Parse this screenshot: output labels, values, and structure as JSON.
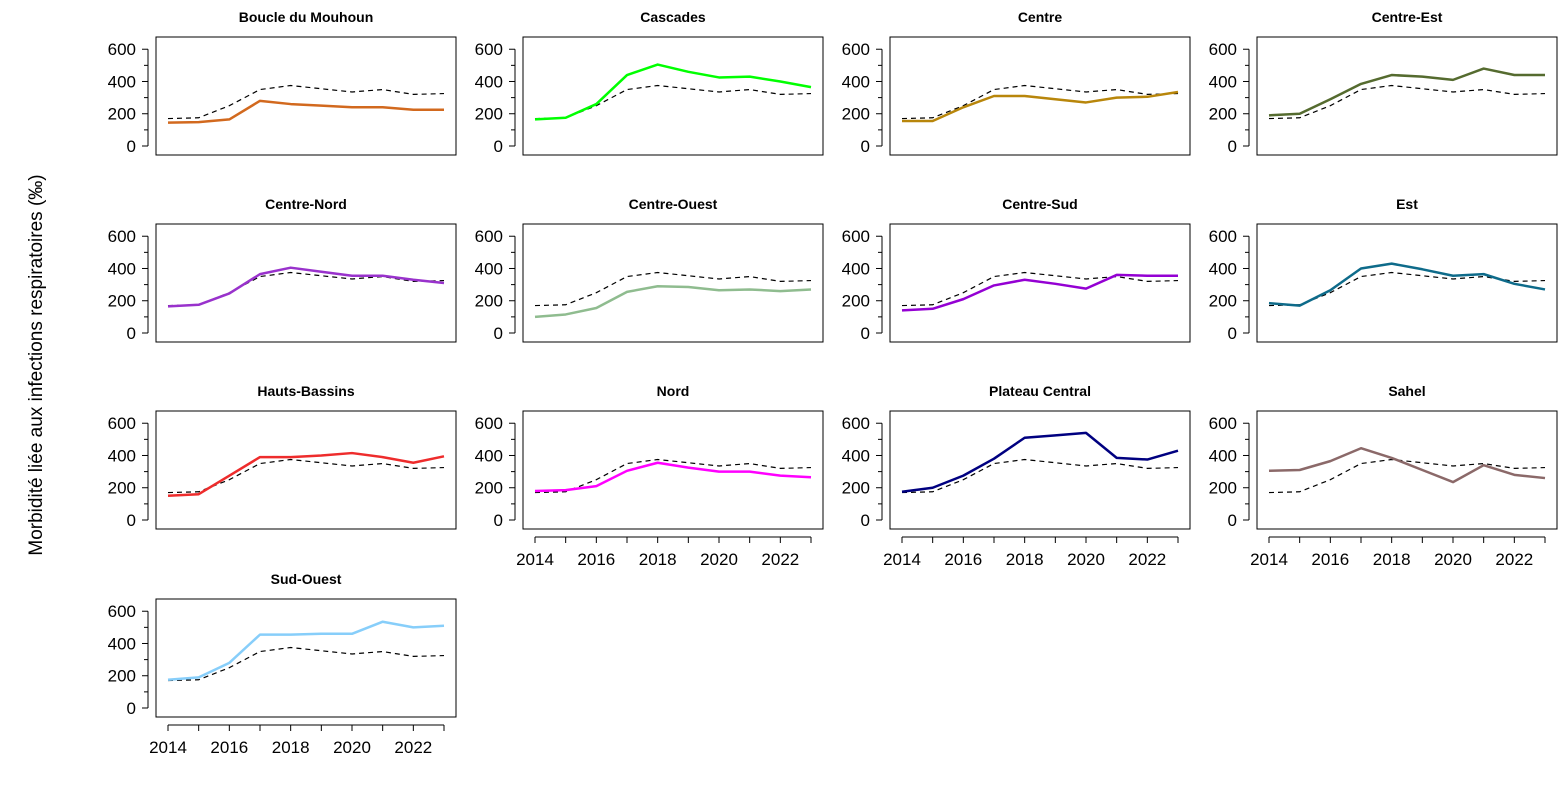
{
  "chart_data": {
    "type": "line",
    "ylabel": "Morbidité liée aux infections respiratoires (‰)",
    "x": [
      2014,
      2015,
      2016,
      2017,
      2018,
      2019,
      2020,
      2021,
      2022,
      2023
    ],
    "x_ticks": [
      2014,
      2016,
      2018,
      2020,
      2022
    ],
    "y_ticks": [
      0,
      200,
      400,
      600
    ],
    "ylim": [
      0,
      620
    ],
    "grid": false,
    "reference": [
      170,
      175,
      250,
      350,
      375,
      355,
      335,
      350,
      320,
      325
    ],
    "panels": [
      {
        "title": "Boucle du Mouhoun",
        "color": "#D2691E",
        "values": [
          145,
          148,
          165,
          280,
          260,
          250,
          240,
          240,
          225,
          225
        ]
      },
      {
        "title": "Cascades",
        "color": "#00FF00",
        "values": [
          165,
          175,
          260,
          440,
          505,
          460,
          425,
          430,
          400,
          365
        ]
      },
      {
        "title": "Centre",
        "color": "#B8860B",
        "values": [
          155,
          155,
          240,
          310,
          310,
          290,
          270,
          300,
          305,
          335
        ]
      },
      {
        "title": "Centre-Est",
        "color": "#556B2F",
        "values": [
          190,
          200,
          290,
          385,
          440,
          430,
          410,
          480,
          440,
          440
        ]
      },
      {
        "title": "Centre-Nord",
        "color": "#9932CC",
        "values": [
          165,
          175,
          245,
          365,
          405,
          380,
          355,
          355,
          330,
          310
        ]
      },
      {
        "title": "Centre-Ouest",
        "color": "#8FBC8F",
        "values": [
          100,
          115,
          155,
          255,
          290,
          285,
          265,
          270,
          260,
          270
        ]
      },
      {
        "title": "Centre-Sud",
        "color": "#9400D3",
        "values": [
          140,
          150,
          210,
          295,
          330,
          305,
          275,
          360,
          355,
          355
        ]
      },
      {
        "title": "Est",
        "color": "#0E6B8A",
        "values": [
          185,
          170,
          265,
          400,
          430,
          395,
          355,
          365,
          305,
          270
        ]
      },
      {
        "title": "Hauts-Bassins",
        "color": "#EE2C2C",
        "values": [
          150,
          160,
          275,
          390,
          390,
          400,
          415,
          390,
          355,
          395
        ]
      },
      {
        "title": "Nord",
        "color": "#FF00FF",
        "values": [
          180,
          185,
          210,
          305,
          355,
          325,
          300,
          300,
          275,
          265
        ]
      },
      {
        "title": "Plateau Central",
        "color": "#000080",
        "values": [
          175,
          200,
          275,
          380,
          510,
          525,
          540,
          385,
          375,
          430
        ]
      },
      {
        "title": "Sahel",
        "color": "#8B6969",
        "values": [
          305,
          310,
          365,
          445,
          385,
          310,
          235,
          340,
          280,
          260
        ]
      },
      {
        "title": "Sud-Ouest",
        "color": "#87CEFA",
        "values": [
          175,
          190,
          280,
          455,
          455,
          460,
          460,
          535,
          500,
          510
        ]
      }
    ]
  }
}
